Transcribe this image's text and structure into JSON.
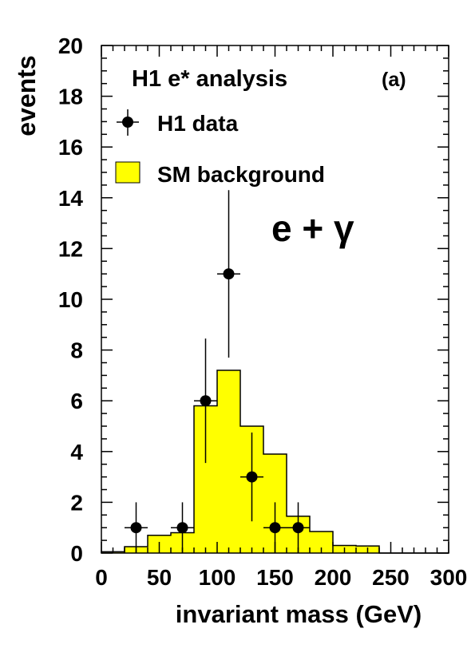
{
  "chart_data": {
    "type": "bar",
    "title": "H1 e* analysis",
    "panel_label": "(a)",
    "channel_label": "e + γ",
    "xlabel": "invariant mass (GeV)",
    "ylabel": "events",
    "xlim": [
      0,
      300
    ],
    "ylim": [
      0,
      20
    ],
    "xticks": [
      0,
      50,
      100,
      150,
      200,
      250,
      300
    ],
    "yticks": [
      0,
      2,
      4,
      6,
      8,
      10,
      12,
      14,
      16,
      18,
      20
    ],
    "legend": {
      "placement": "top-left",
      "data_label": "H1 data",
      "background_label": "SM background"
    },
    "colors": {
      "background_fill": "#ffff00",
      "marker": "#000000"
    },
    "background": {
      "name": "SM background",
      "bin_edges": [
        0,
        20,
        40,
        60,
        80,
        100,
        120,
        140,
        160,
        180,
        200,
        220,
        240,
        260,
        280,
        300
      ],
      "values": [
        0.05,
        0.25,
        0.7,
        0.8,
        5.8,
        7.2,
        5.0,
        3.9,
        1.45,
        0.85,
        0.3,
        0.28,
        0,
        0,
        0
      ]
    },
    "data": {
      "name": "H1 data",
      "x": [
        30,
        70,
        90,
        110,
        130,
        150,
        170
      ],
      "y": [
        1,
        1,
        6,
        11,
        3,
        1,
        1
      ],
      "err_low": [
        1,
        1,
        2.45,
        3.3,
        1.75,
        1,
        1
      ],
      "err_high": [
        1,
        1,
        2.45,
        3.3,
        1.75,
        1,
        1
      ]
    }
  }
}
